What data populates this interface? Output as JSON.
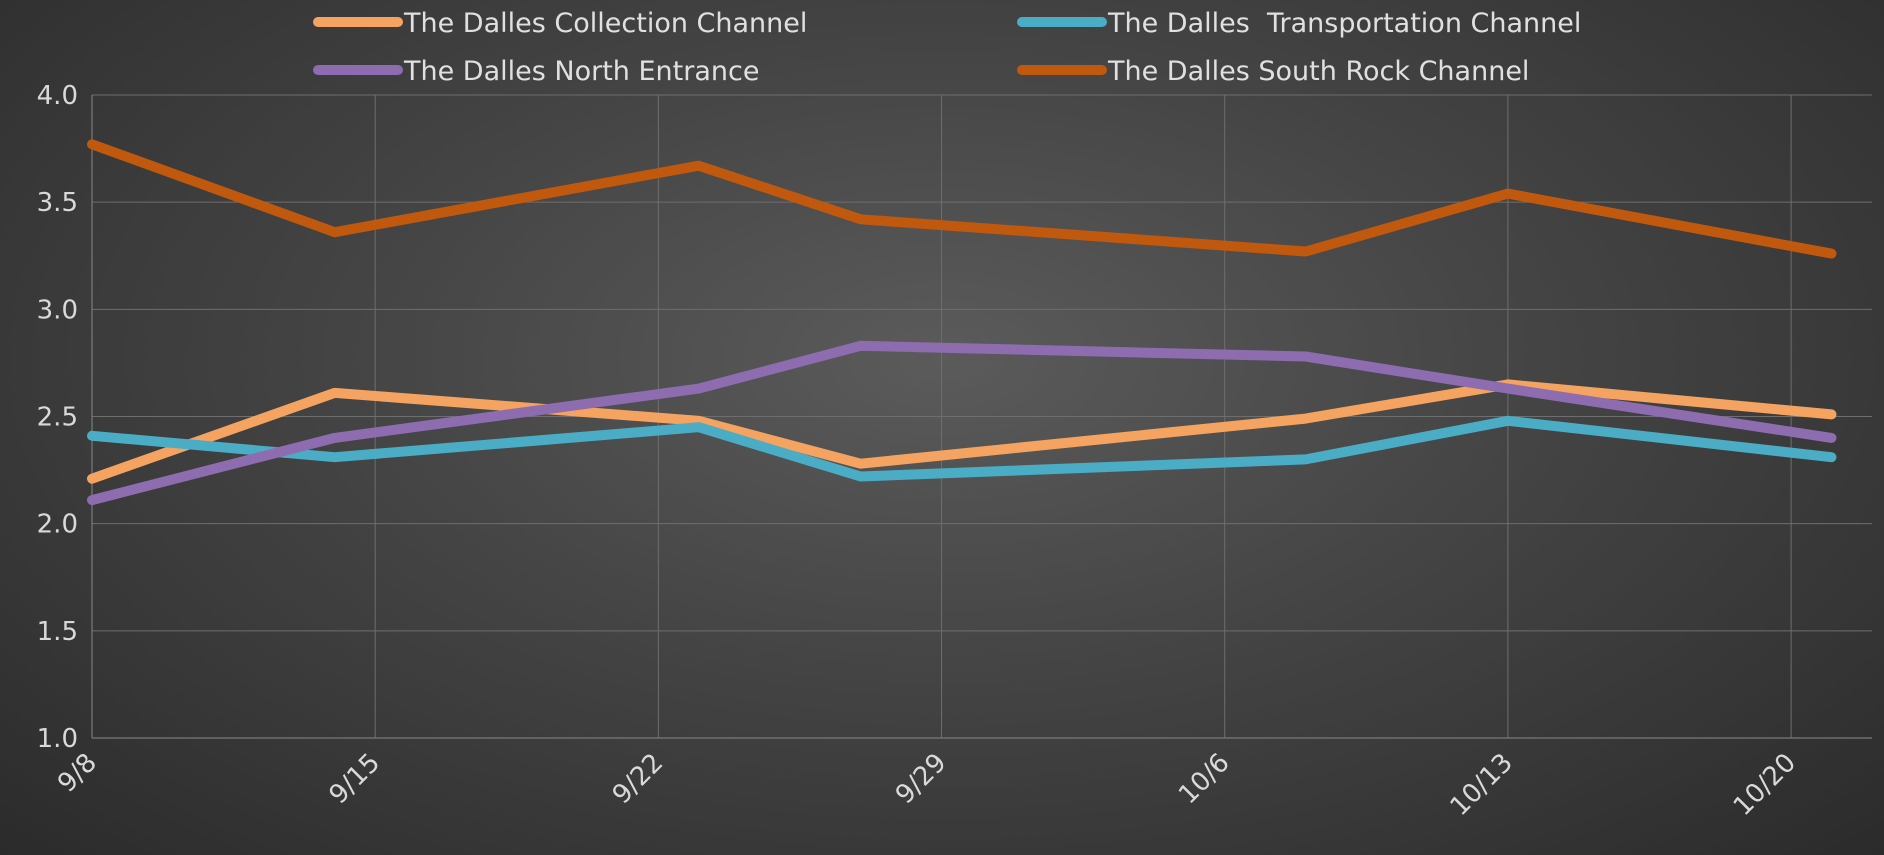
{
  "chart_data": {
    "type": "line",
    "title": "",
    "xlabel": "",
    "ylabel": "",
    "x_axis_type": "date",
    "x_ticks": [
      "9/8",
      "9/15",
      "9/22",
      "9/29",
      "10/6",
      "10/13",
      "10/20"
    ],
    "ylim": [
      1.0,
      4.0
    ],
    "y_ticks": [
      "1.0",
      "1.5",
      "2.0",
      "2.5",
      "3.0",
      "3.5",
      "4.0"
    ],
    "grid": "vertical and horizontal",
    "legend_position": "top",
    "series": [
      {
        "name": "The Dalles Collection Channel",
        "color": "#f4a460",
        "x": [
          "9/8",
          "9/14",
          "9/23",
          "9/27",
          "10/8",
          "10/13",
          "10/21"
        ],
        "values": [
          2.21,
          2.61,
          2.48,
          2.28,
          2.49,
          2.65,
          2.51
        ]
      },
      {
        "name": "The Dalles  Transportation Channel",
        "color": "#4bacc6",
        "x": [
          "9/8",
          "9/14",
          "9/23",
          "9/27",
          "10/8",
          "10/13",
          "10/21"
        ],
        "values": [
          2.41,
          2.31,
          2.45,
          2.22,
          2.3,
          2.48,
          2.31
        ]
      },
      {
        "name": "The Dalles North Entrance",
        "color": "#8e6cb0",
        "x": [
          "9/8",
          "9/14",
          "9/23",
          "9/27",
          "10/8",
          "10/13",
          "10/21"
        ],
        "values": [
          2.11,
          2.4,
          2.63,
          2.83,
          2.78,
          2.63,
          2.4
        ]
      },
      {
        "name": "The Dalles South Rock Channel",
        "color": "#c0580e",
        "x": [
          "9/8",
          "9/14",
          "9/23",
          "9/27",
          "10/8",
          "10/13",
          "10/21"
        ],
        "values": [
          3.77,
          3.36,
          3.67,
          3.42,
          3.27,
          3.54,
          3.26
        ]
      }
    ]
  }
}
